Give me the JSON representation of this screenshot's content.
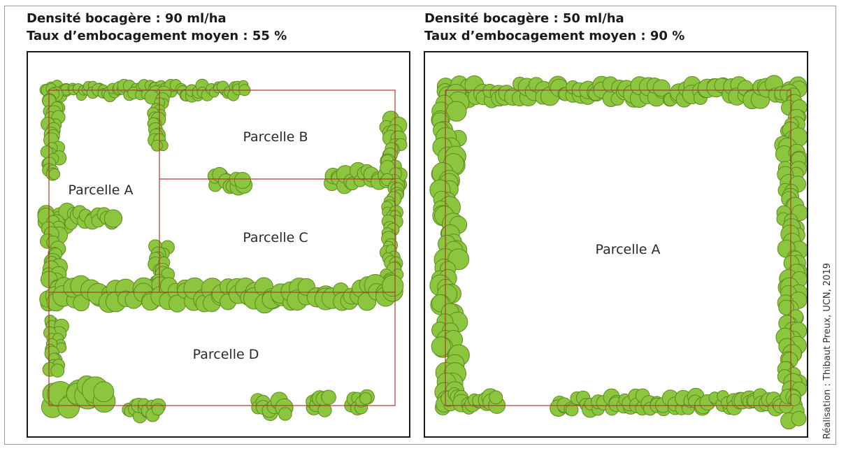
{
  "left_panel": {
    "density_line": "Densité bocagère : 90 ml/ha",
    "rate_line": "Taux d’embocagement moyen : 55 %",
    "parcels": [
      {
        "id": "A",
        "label": "Parcelle A"
      },
      {
        "id": "B",
        "label": "Parcelle B"
      },
      {
        "id": "C",
        "label": "Parcelle C"
      },
      {
        "id": "D",
        "label": "Parcelle D"
      }
    ]
  },
  "right_panel": {
    "density_line": "Densité bocagère : 50 ml/ha",
    "rate_line": "Taux d’embocagement moyen : 90 %",
    "parcels": [
      {
        "id": "A",
        "label": "Parcelle A"
      }
    ]
  },
  "credit": "Réalisation : Thibaut Preux, UCN, 2019",
  "colors": {
    "hedge_fill": "#8cc63f",
    "hedge_dark": "#5d8a1e",
    "parcel_border": "#b03a2e",
    "panel_border": "#1a1a1a"
  }
}
